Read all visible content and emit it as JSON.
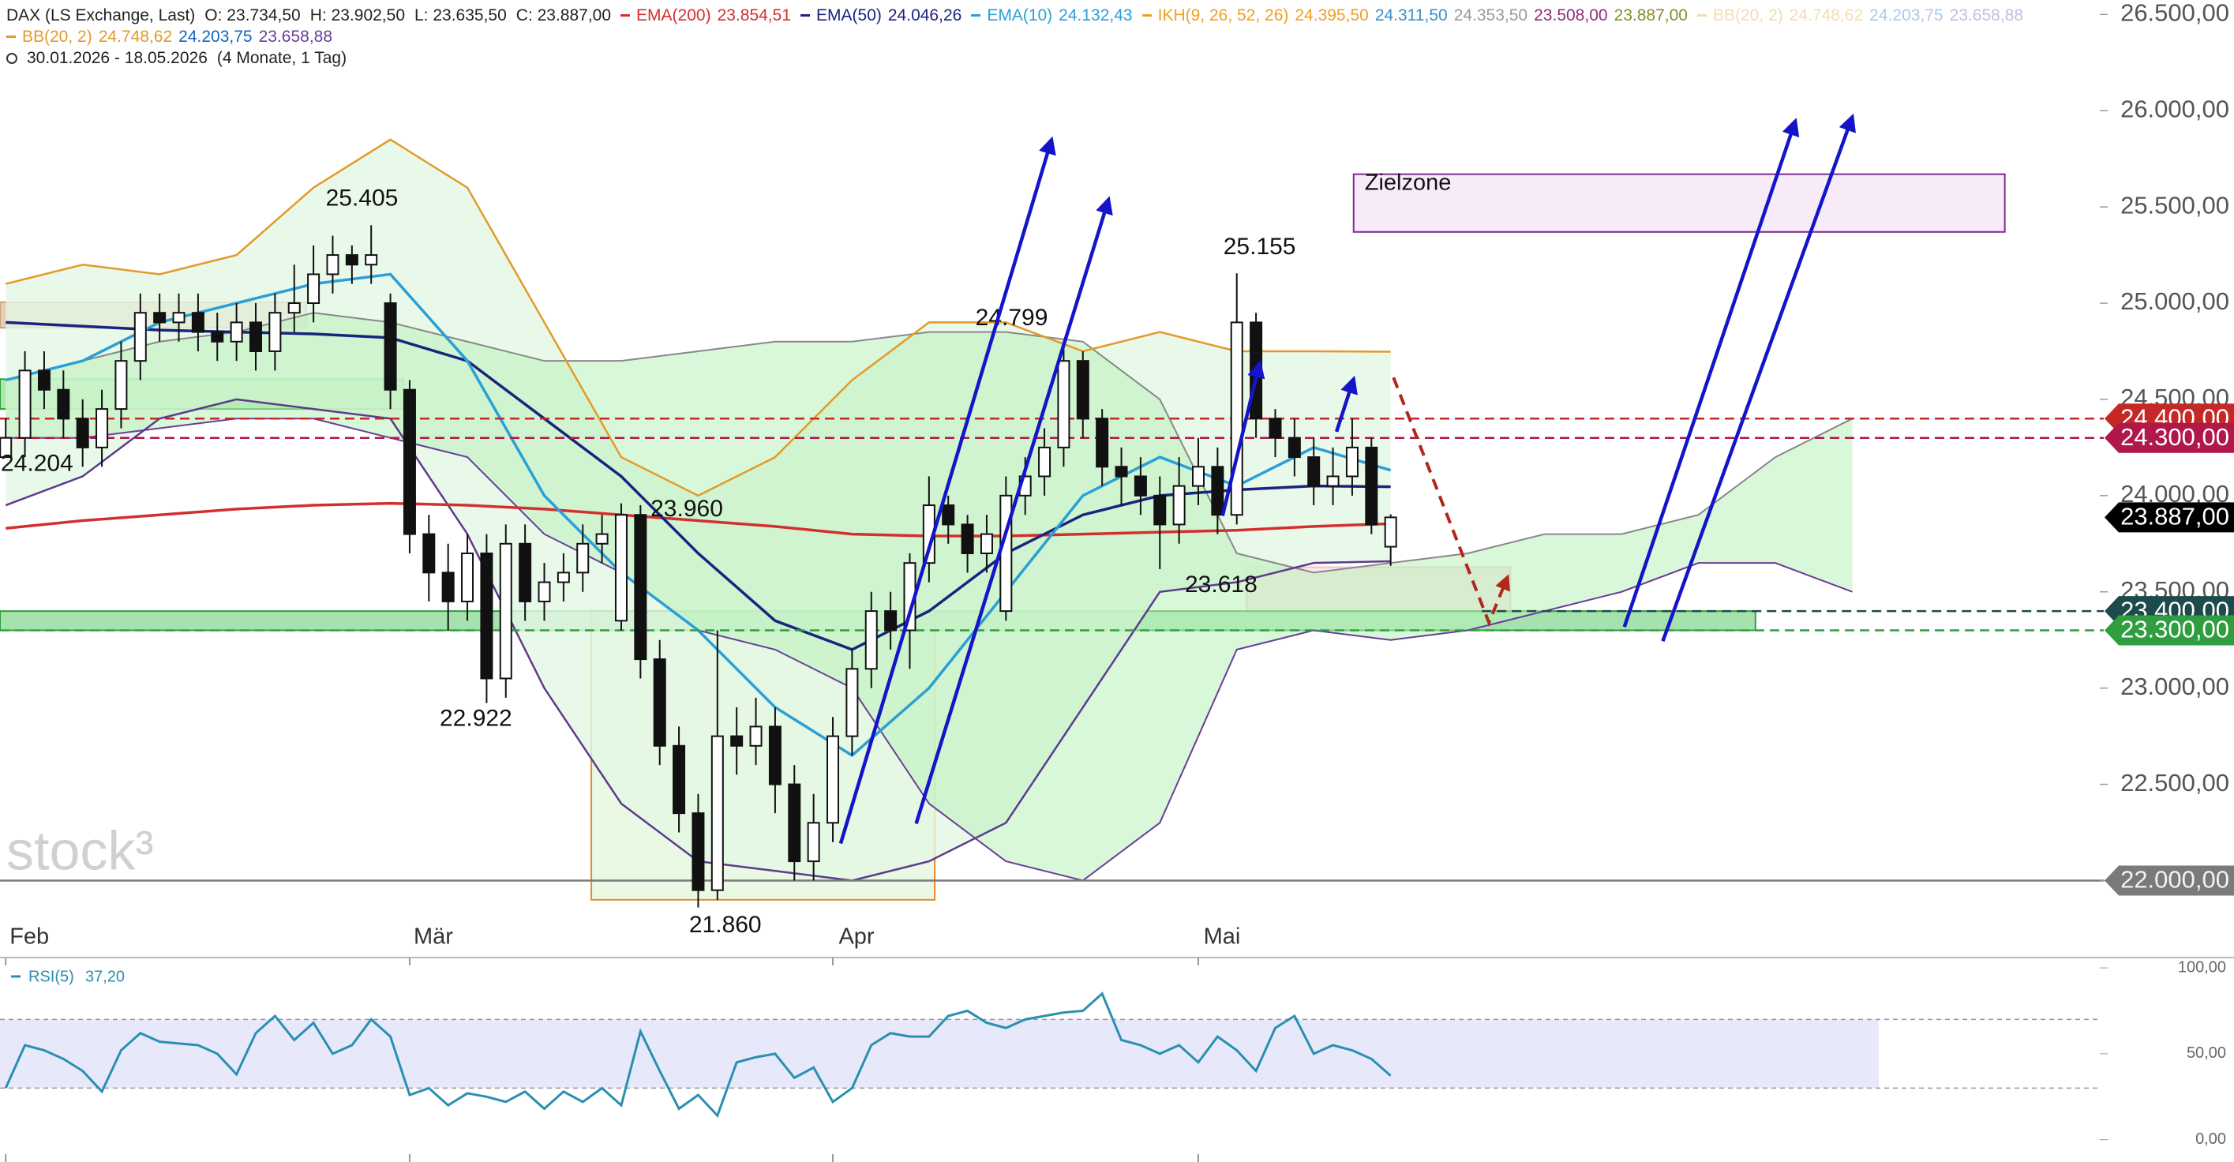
{
  "chart_data": {
    "type": "candlestick",
    "symbol": "DAX (LS Exchange, Last)",
    "ohlc_labels": [
      "O: 23.734,50",
      "H: 23.902,50",
      "L: 23.635,50",
      "C: 23.887,00"
    ],
    "date_range": "30.01.2026 - 18.05.2026",
    "period": "(4 Monate, 1 Tag)",
    "watermark": "stock³",
    "categories": [
      "Feb",
      null,
      null,
      null,
      null,
      null,
      null,
      null,
      null,
      null,
      null,
      null,
      null,
      null,
      null,
      null,
      null,
      null,
      null,
      null,
      null,
      "Mär",
      null,
      null,
      null,
      null,
      null,
      null,
      null,
      null,
      null,
      null,
      null,
      null,
      null,
      null,
      null,
      null,
      null,
      null,
      null,
      null,
      null,
      "Apr",
      null,
      null,
      null,
      null,
      null,
      null,
      null,
      null,
      null,
      null,
      null,
      null,
      null,
      null,
      null,
      null,
      null,
      null,
      "Mai",
      null,
      null,
      null,
      null,
      null,
      null,
      null,
      null,
      null,
      null
    ],
    "open": [
      24200,
      24300,
      24650,
      24550,
      24400,
      24250,
      24450,
      24700,
      24950,
      24900,
      24950,
      24850,
      24800,
      24900,
      24750,
      24950,
      25000,
      25150,
      25250,
      25200,
      25000,
      24550,
      23800,
      23600,
      23450,
      23700,
      23050,
      23750,
      23450,
      23550,
      23600,
      23750,
      23350,
      23900,
      23150,
      22700,
      22350,
      21950,
      22750,
      22700,
      22800,
      22500,
      22100,
      22300,
      22750,
      23100,
      23400,
      23300,
      23650,
      23950,
      23850,
      23700,
      23400,
      24000,
      24100,
      24250,
      24700,
      24400,
      24150,
      24100,
      24000,
      23850,
      24050,
      24150,
      23900,
      24900,
      24400,
      24300,
      24200,
      24050,
      24100,
      24250,
      23734.5
    ],
    "high": [
      24400,
      24750,
      24750,
      24650,
      24500,
      24550,
      24800,
      25050,
      25050,
      25050,
      25050,
      24950,
      25000,
      25000,
      25050,
      25200,
      25300,
      25350,
      25300,
      25405,
      25050,
      24600,
      23900,
      23750,
      23800,
      23800,
      23850,
      23850,
      23650,
      23700,
      23850,
      23900,
      23960,
      23950,
      23250,
      22800,
      22450,
      23300,
      22900,
      22950,
      22900,
      22600,
      22450,
      22850,
      23200,
      23500,
      23500,
      23700,
      24100,
      24000,
      23900,
      23900,
      24100,
      24200,
      24350,
      24799,
      24750,
      24450,
      24250,
      24200,
      24100,
      24200,
      24300,
      24250,
      25155,
      24950,
      24450,
      24400,
      24300,
      24250,
      24400,
      24300,
      23902.5
    ],
    "low": [
      24204,
      24200,
      24450,
      24300,
      24150,
      24150,
      24350,
      24600,
      24800,
      24800,
      24750,
      24700,
      24700,
      24650,
      24650,
      24850,
      24900,
      25050,
      25100,
      25100,
      24450,
      23700,
      23450,
      23300,
      23350,
      22922,
      22950,
      23350,
      23350,
      23450,
      23500,
      23650,
      23300,
      23050,
      22600,
      22250,
      21860,
      21900,
      22550,
      22600,
      22350,
      22000,
      22000,
      22200,
      22650,
      23000,
      23200,
      23100,
      23550,
      23750,
      23600,
      23600,
      23350,
      23900,
      24000,
      24150,
      24300,
      24050,
      23950,
      23900,
      23618,
      23750,
      23950,
      23800,
      23850,
      24300,
      24200,
      24100,
      23950,
      23950,
      24000,
      23800,
      23635.5
    ],
    "close": [
      24300,
      24650,
      24550,
      24400,
      24250,
      24450,
      24700,
      24950,
      24900,
      24950,
      24850,
      24800,
      24900,
      24750,
      24950,
      25000,
      25150,
      25250,
      25200,
      25250,
      24550,
      23800,
      23600,
      23450,
      23700,
      23050,
      23750,
      23450,
      23550,
      23600,
      23750,
      23800,
      23900,
      23150,
      22700,
      22350,
      21950,
      22750,
      22700,
      22800,
      22500,
      22100,
      22300,
      22750,
      23100,
      23400,
      23300,
      23650,
      23950,
      23850,
      23700,
      23800,
      24000,
      24100,
      24250,
      24700,
      24400,
      24150,
      24100,
      24000,
      23850,
      24050,
      24150,
      23900,
      24900,
      24400,
      24300,
      24200,
      24050,
      24100,
      24250,
      23850,
      23887
    ],
    "up_color": "#ffffff",
    "down_color": "#111111",
    "ylim": [
      21600,
      26575
    ],
    "yticks": [
      {
        "value": 22000,
        "label": "22.000,00"
      },
      {
        "value": 22500,
        "label": "22.500,00"
      },
      {
        "value": 23000,
        "label": "23.000,00"
      },
      {
        "value": 23500,
        "label": "23.500,00"
      },
      {
        "value": 24000,
        "label": "24.000,00"
      },
      {
        "value": 24500,
        "label": "24.500,00"
      },
      {
        "value": 25000,
        "label": "25.000,00"
      },
      {
        "value": 25500,
        "label": "25.500,00"
      },
      {
        "value": 26000,
        "label": "26.000,00"
      },
      {
        "value": 26500,
        "label": "26.500,00"
      }
    ],
    "series": [
      {
        "name": "EMA(200)",
        "color": "#d32f2f",
        "legend_values": [
          "23.854,51"
        ],
        "x": [
          0,
          4,
          8,
          12,
          16,
          20,
          24,
          28,
          32,
          36,
          40,
          44,
          48,
          52,
          56,
          60,
          64,
          68,
          72
        ],
        "values": [
          23830,
          23870,
          23900,
          23930,
          23950,
          23960,
          23950,
          23930,
          23900,
          23870,
          23840,
          23800,
          23790,
          23790,
          23800,
          23810,
          23820,
          23840,
          23854
        ]
      },
      {
        "name": "EMA(50)",
        "color": "#1a237e",
        "legend_values": [
          "24.046,26"
        ],
        "x": [
          0,
          4,
          8,
          12,
          16,
          20,
          24,
          28,
          32,
          36,
          40,
          44,
          48,
          52,
          56,
          60,
          64,
          68,
          72
        ],
        "values": [
          24900,
          24880,
          24860,
          24850,
          24840,
          24820,
          24700,
          24400,
          24100,
          23700,
          23350,
          23200,
          23400,
          23700,
          23900,
          24000,
          24030,
          24050,
          24046
        ]
      },
      {
        "name": "EMA(10)",
        "color": "#2a9fd8",
        "legend_values": [
          "24.132,43"
        ],
        "x": [
          0,
          4,
          8,
          12,
          16,
          20,
          24,
          28,
          32,
          36,
          40,
          44,
          48,
          52,
          56,
          60,
          64,
          68,
          72
        ],
        "values": [
          24600,
          24700,
          24900,
          25000,
          25100,
          25150,
          24700,
          24000,
          23600,
          23300,
          22900,
          22650,
          23000,
          23500,
          24000,
          24200,
          24050,
          24250,
          24132
        ]
      }
    ],
    "ichimoku": {
      "name": "IKH(9, 26, 52, 26)",
      "color": "#f0a020",
      "legend_values": [
        "24.395,50",
        "24.311,50",
        "24.353,50",
        "23.508,00",
        "23.887,00"
      ],
      "value_colors": [
        "#f0a020",
        "#3a8fc8",
        "#999999",
        "#8e2d7a",
        "#8a8a2a"
      ],
      "x": [
        0,
        4,
        8,
        12,
        16,
        20,
        24,
        28,
        32,
        36,
        40,
        44,
        48,
        52,
        56,
        60,
        64,
        68,
        72,
        76,
        80,
        84,
        88,
        92,
        96
      ],
      "span_a": [
        24600,
        24700,
        24800,
        24850,
        24950,
        24900,
        24800,
        24700,
        24700,
        24750,
        24800,
        24800,
        24850,
        24850,
        24800,
        24500,
        23700,
        23600,
        23650,
        23700,
        23800,
        23800,
        23900,
        24200,
        24400
      ],
      "span_b": [
        24300,
        24300,
        24350,
        24400,
        24400,
        24300,
        24200,
        23800,
        23600,
        23300,
        23200,
        23000,
        22400,
        22100,
        22000,
        22300,
        23200,
        23300,
        23250,
        23300,
        23400,
        23500,
        23650,
        23650,
        23500
      ],
      "line_color": "#888888",
      "fill": "#b9f0b9"
    },
    "bollinger": {
      "name": "BB(20, 2)",
      "color": "#e39a2a",
      "legend_values": [
        "24.748,62",
        "24.203,75",
        "23.658,88"
      ],
      "value_colors": [
        "#e39a2a",
        "#1565c0",
        "#6a3d9a"
      ],
      "x": [
        0,
        4,
        8,
        12,
        16,
        20,
        24,
        28,
        32,
        36,
        40,
        44,
        48,
        52,
        56,
        60,
        64,
        68,
        72
      ],
      "upper": [
        25100,
        25200,
        25150,
        25250,
        25600,
        25850,
        25600,
        24900,
        24200,
        24000,
        24200,
        24600,
        24900,
        24900,
        24750,
        24850,
        24750,
        24750,
        24748
      ],
      "lower": [
        23950,
        24100,
        24400,
        24500,
        24450,
        24400,
        23800,
        23000,
        22400,
        22100,
        22050,
        22000,
        22100,
        22300,
        22900,
        23500,
        23550,
        23650,
        23659
      ],
      "lower_color": "#5e3a8c",
      "fill": "#e4f8e4"
    },
    "levels": [
      {
        "value": 24400,
        "label": "24.400,00",
        "color": "#c62828",
        "line": "dashed"
      },
      {
        "value": 24300,
        "label": "24.300,00",
        "color": "#b0184a",
        "line": "dashed"
      },
      {
        "value": 23887,
        "label": "23.887,00",
        "color": "#000000",
        "line": "none"
      },
      {
        "value": 23400,
        "label": "23.400,00",
        "color": "#1d4a4a",
        "line": "dashed"
      },
      {
        "value": 23300,
        "label": "23.300,00",
        "color": "#2e9e3e",
        "line": "dashed"
      },
      {
        "value": 22000,
        "label": "22.000,00",
        "color": "#7a7a7a",
        "line": "solid"
      }
    ],
    "zones": [
      {
        "ylim": [
          21900,
          23400
        ],
        "color": "#e68a2e",
        "fill": "#dff7d9"
      },
      {
        "ylim": [
          23391,
          23628
        ],
        "color": "#f5c6cc",
        "fill": "#fbdde1"
      },
      {
        "ylim": [
          23300,
          23400
        ],
        "color": "#2e9e3e",
        "fill": "#7fd58a"
      },
      {
        "ylim": [
          24872,
          25005
        ],
        "color": "#c8a27a",
        "fill": "#d9b99a"
      },
      {
        "ylim": [
          24450,
          24605
        ],
        "color": "#2e9e3e",
        "fill": "#8fdc8f"
      },
      {
        "ylim": [
          25370,
          25670
        ],
        "label": "Zielzone",
        "color": "#7b2d8e",
        "fill": "#f4e3f8"
      }
    ],
    "annotations": [
      {
        "value": 25405,
        "label": "25.405"
      },
      {
        "value": 24204,
        "label": "24.204"
      },
      {
        "value": 22922,
        "label": "22.922"
      },
      {
        "value": 23960,
        "label": "23.960"
      },
      {
        "value": 21860,
        "label": "21.860"
      },
      {
        "value": 24799,
        "label": "24.799"
      },
      {
        "value": 25155,
        "label": "25.155"
      },
      {
        "value": 23618,
        "label": "23.618"
      }
    ],
    "rsi": {
      "name": "RSI(5)",
      "color": "#2a8fb0",
      "legend_values": [
        "37,20"
      ],
      "values": [
        30,
        55,
        52,
        47,
        40,
        28,
        52,
        62,
        57,
        56,
        55,
        50,
        38,
        62,
        72,
        58,
        68,
        50,
        55,
        70,
        60,
        26,
        30,
        20,
        27,
        25,
        22,
        28,
        18,
        28,
        22,
        30,
        20,
        63,
        40,
        18,
        26,
        14,
        45,
        48,
        50,
        36,
        42,
        22,
        30,
        55,
        62,
        60,
        60,
        72,
        75,
        68,
        65,
        70,
        72,
        74,
        75,
        85,
        58,
        55,
        50,
        55,
        45,
        60,
        52,
        40,
        65,
        72,
        50,
        55,
        52,
        47,
        37.2
      ],
      "ylim": [
        -13,
        106
      ],
      "yticks": [
        {
          "value": 0,
          "label": "0,00"
        },
        {
          "value": 50,
          "label": "50,00"
        },
        {
          "value": 100,
          "label": "100,00"
        }
      ],
      "bands": [
        30,
        70
      ],
      "band_fill": "#e8e8fb"
    }
  }
}
